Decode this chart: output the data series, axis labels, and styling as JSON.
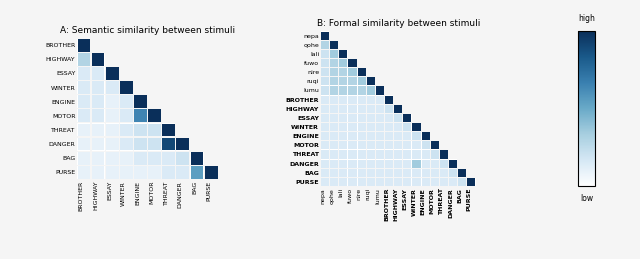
{
  "title_A": "A: Semantic similarity between stimuli",
  "title_B": "B: Formal similarity between stimuli",
  "labels_A": [
    "BROTHER",
    "HIGHWAY",
    "ESSAY",
    "WINTER",
    "ENGINE",
    "MOTOR",
    "THREAT",
    "DANGER",
    "BAG",
    "PURSE"
  ],
  "sem_matrix": [
    [
      1.0,
      0.3,
      0.1,
      0.1,
      0.1,
      0.1,
      0.1,
      0.1,
      0.1,
      0.1
    ],
    [
      0.3,
      1.0,
      0.15,
      0.15,
      0.15,
      0.15,
      0.1,
      0.1,
      0.1,
      0.1
    ],
    [
      0.15,
      0.15,
      1.0,
      0.15,
      0.1,
      0.1,
      0.1,
      0.1,
      0.1,
      0.1
    ],
    [
      0.15,
      0.15,
      0.15,
      1.0,
      0.15,
      0.15,
      0.15,
      0.15,
      0.1,
      0.1
    ],
    [
      0.15,
      0.15,
      0.1,
      0.15,
      1.0,
      0.65,
      0.2,
      0.2,
      0.15,
      0.1
    ],
    [
      0.15,
      0.15,
      0.1,
      0.15,
      0.65,
      1.0,
      0.2,
      0.2,
      0.15,
      0.1
    ],
    [
      0.1,
      0.1,
      0.1,
      0.15,
      0.2,
      0.2,
      1.0,
      0.9,
      0.15,
      0.15
    ],
    [
      0.1,
      0.1,
      0.1,
      0.15,
      0.2,
      0.2,
      0.9,
      1.0,
      0.2,
      0.15
    ],
    [
      0.1,
      0.1,
      0.1,
      0.1,
      0.15,
      0.15,
      0.15,
      0.2,
      1.0,
      0.55
    ],
    [
      0.1,
      0.1,
      0.1,
      0.1,
      0.1,
      0.1,
      0.15,
      0.15,
      0.55,
      1.0
    ]
  ],
  "labels_B_rows": [
    "nepa",
    "qohe",
    "lali",
    "fuwo",
    "nire",
    "ruqi",
    "lumu",
    "BROTHER",
    "HIGHWAY",
    "ESSAY",
    "WINTER",
    "ENGINE",
    "MOTOR",
    "THREAT",
    "DANGER",
    "BAG",
    "PURSE"
  ],
  "labels_B_cols": [
    "nepa",
    "qohe",
    "lali",
    "fuwo",
    "nire",
    "ruqi",
    "lumu",
    "BROTHER",
    "HIGHWAY",
    "ESSAY",
    "WINTER",
    "ENGINE",
    "MOTOR",
    "THREAT",
    "DANGER",
    "BAG",
    "PURSE"
  ],
  "form_matrix": [
    [
      1.0,
      0.3,
      0.2,
      0.2,
      0.2,
      0.2,
      0.2,
      0.15,
      0.15,
      0.15,
      0.15,
      0.15,
      0.15,
      0.15,
      0.15,
      0.15,
      0.15
    ],
    [
      0.3,
      1.0,
      0.35,
      0.3,
      0.3,
      0.3,
      0.3,
      0.15,
      0.15,
      0.15,
      0.15,
      0.15,
      0.15,
      0.15,
      0.15,
      0.15,
      0.15
    ],
    [
      0.2,
      0.35,
      1.0,
      0.35,
      0.3,
      0.3,
      0.3,
      0.15,
      0.15,
      0.15,
      0.15,
      0.15,
      0.15,
      0.15,
      0.15,
      0.15,
      0.15
    ],
    [
      0.2,
      0.3,
      0.35,
      1.0,
      0.35,
      0.3,
      0.3,
      0.15,
      0.15,
      0.15,
      0.15,
      0.15,
      0.15,
      0.15,
      0.15,
      0.15,
      0.15
    ],
    [
      0.2,
      0.3,
      0.3,
      0.35,
      1.0,
      0.35,
      0.3,
      0.15,
      0.15,
      0.15,
      0.15,
      0.15,
      0.15,
      0.15,
      0.15,
      0.15,
      0.15
    ],
    [
      0.2,
      0.3,
      0.3,
      0.3,
      0.35,
      1.0,
      0.35,
      0.15,
      0.15,
      0.15,
      0.15,
      0.15,
      0.15,
      0.15,
      0.15,
      0.15,
      0.15
    ],
    [
      0.2,
      0.3,
      0.3,
      0.3,
      0.3,
      0.35,
      1.0,
      0.15,
      0.15,
      0.15,
      0.15,
      0.15,
      0.15,
      0.15,
      0.15,
      0.15,
      0.15
    ],
    [
      0.15,
      0.15,
      0.15,
      0.15,
      0.15,
      0.15,
      0.15,
      1.0,
      0.2,
      0.15,
      0.15,
      0.15,
      0.15,
      0.15,
      0.15,
      0.15,
      0.15
    ],
    [
      0.15,
      0.15,
      0.15,
      0.15,
      0.15,
      0.15,
      0.15,
      0.2,
      1.0,
      0.2,
      0.15,
      0.15,
      0.15,
      0.15,
      0.15,
      0.15,
      0.15
    ],
    [
      0.15,
      0.15,
      0.15,
      0.15,
      0.15,
      0.15,
      0.15,
      0.15,
      0.2,
      1.0,
      0.2,
      0.15,
      0.15,
      0.15,
      0.15,
      0.15,
      0.15
    ],
    [
      0.15,
      0.15,
      0.15,
      0.15,
      0.15,
      0.15,
      0.15,
      0.15,
      0.15,
      0.2,
      1.0,
      0.2,
      0.15,
      0.15,
      0.35,
      0.15,
      0.15
    ],
    [
      0.15,
      0.15,
      0.15,
      0.15,
      0.15,
      0.15,
      0.15,
      0.15,
      0.15,
      0.15,
      0.2,
      1.0,
      0.2,
      0.15,
      0.15,
      0.15,
      0.15
    ],
    [
      0.15,
      0.15,
      0.15,
      0.15,
      0.15,
      0.15,
      0.15,
      0.15,
      0.15,
      0.15,
      0.15,
      0.2,
      1.0,
      0.2,
      0.15,
      0.15,
      0.15
    ],
    [
      0.15,
      0.15,
      0.15,
      0.15,
      0.15,
      0.15,
      0.15,
      0.15,
      0.15,
      0.15,
      0.15,
      0.15,
      0.2,
      1.0,
      0.2,
      0.15,
      0.15
    ],
    [
      0.15,
      0.15,
      0.15,
      0.15,
      0.15,
      0.15,
      0.15,
      0.15,
      0.15,
      0.15,
      0.35,
      0.15,
      0.15,
      0.2,
      1.0,
      0.2,
      0.15
    ],
    [
      0.15,
      0.15,
      0.15,
      0.15,
      0.15,
      0.15,
      0.15,
      0.15,
      0.15,
      0.15,
      0.15,
      0.15,
      0.15,
      0.15,
      0.2,
      1.0,
      0.2
    ],
    [
      0.15,
      0.15,
      0.15,
      0.15,
      0.15,
      0.15,
      0.15,
      0.15,
      0.15,
      0.15,
      0.15,
      0.15,
      0.15,
      0.15,
      0.15,
      0.2,
      1.0
    ]
  ],
  "cmap_colors": [
    "#ffffff",
    "#d6e8f5",
    "#a8cfe0",
    "#6aaac8",
    "#3a80b0",
    "#1a5a8a",
    "#0a2f5a"
  ],
  "bg_color": "#f5f5f5",
  "colorbar_label_high": "high",
  "colorbar_label_low": "low",
  "bold_rows_B": [
    "BROTHER",
    "HIGHWAY",
    "ESSAY",
    "WINTER",
    "ENGINE",
    "MOTOR",
    "THREAT",
    "DANGER",
    "BAG",
    "PURSE"
  ]
}
